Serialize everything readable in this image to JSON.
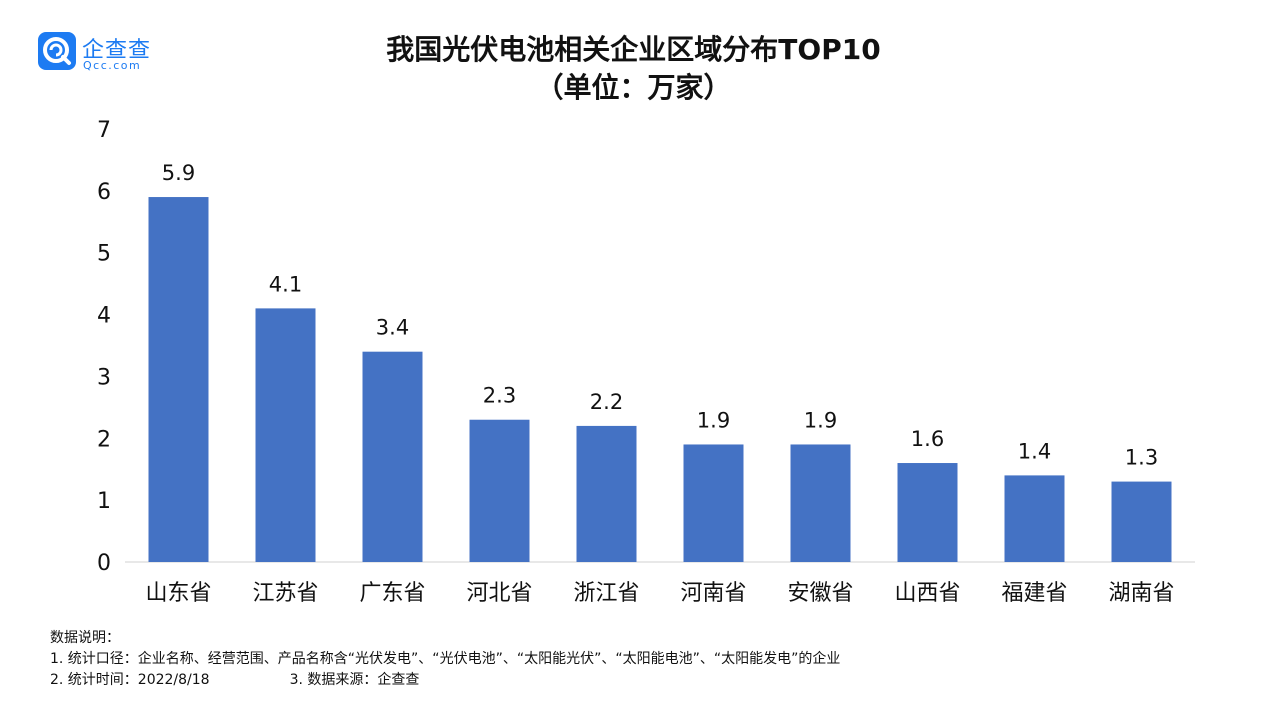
{
  "logo": {
    "name": "企查查",
    "url": "Qcc.com",
    "colors": {
      "brand": "#1d7bf2"
    }
  },
  "chart_data": {
    "type": "bar",
    "title": "我国光伏电池相关企业区域分布TOP10",
    "subtitle": "（单位：万家）",
    "categories": [
      "山东省",
      "江苏省",
      "广东省",
      "河北省",
      "浙江省",
      "河南省",
      "安徽省",
      "山西省",
      "福建省",
      "湖南省"
    ],
    "values": [
      5.9,
      4.1,
      3.4,
      2.3,
      2.2,
      1.9,
      1.9,
      1.6,
      1.4,
      1.3
    ],
    "data_labels": [
      "5.9",
      "4.1",
      "3.4",
      "2.3",
      "2.2",
      "1.9",
      "1.9",
      "1.6",
      "1.4",
      "1.3"
    ],
    "yticks": [
      "0",
      "1",
      "2",
      "3",
      "4",
      "5",
      "6",
      "7"
    ],
    "ylim": [
      0,
      7
    ],
    "xlabel": "",
    "ylabel": "",
    "grid": false,
    "bar_color": "#4472c4"
  },
  "notes": {
    "heading": "数据说明：",
    "line1": "1. 统计口径：企业名称、经营范围、产品名称含“光伏发电”、“光伏电池”、“太阳能光伏”、“太阳能电池”、“太阳能发电”的企业",
    "line2a": "2. 统计时间：2022/8/18",
    "line2b": "3. 数据来源：企查查"
  }
}
